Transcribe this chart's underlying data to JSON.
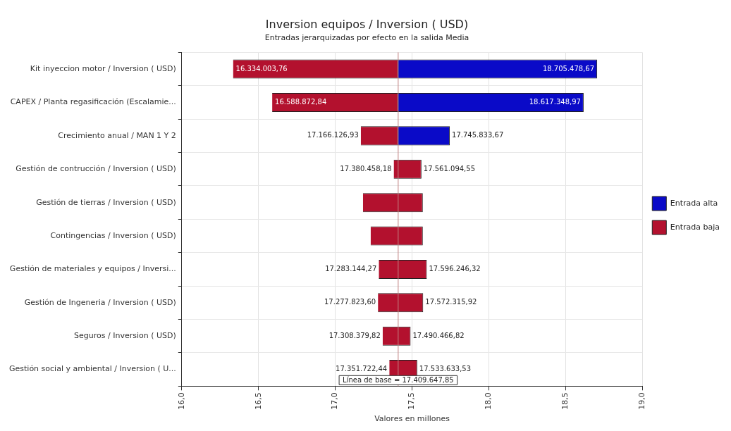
{
  "chart_data": {
    "type": "bar",
    "orientation": "horizontal",
    "title": "Inversion equipos / Inversion ( USD)",
    "subtitle": "Entradas jerarquizadas por efecto en la salida Media",
    "xlabel": "Valores en millones",
    "categories": [
      "Kit inyeccion motor / Inversion ( USD)",
      "CAPEX / Planta regasificación (Escalamie...",
      "Crecimiento anual / MAN 1 Y 2",
      "Gestión de contrucción / Inversion ( USD)",
      "Gestión de tierras / Inversion ( USD)",
      "Contingencias / Inversion ( USD)",
      "Gestión de materiales y equipos / Inversi...",
      "Gestión de Ingeneria / Inversion ( USD)",
      "Seguros / Inversion ( USD)",
      "Gestión social y ambiental / Inversion ( U..."
    ],
    "series": [
      {
        "name": "Entrada alta",
        "color": "#0a0ac8",
        "base": [
          17.40964785,
          17.40964785,
          17.40964785,
          null,
          null,
          null,
          null,
          null,
          null,
          null
        ],
        "values": [
          1.29583082,
          1.20770112,
          0.33618582,
          null,
          null,
          null,
          null,
          null,
          null,
          null
        ]
      },
      {
        "name": "Entrada baja",
        "color": "#b3112e",
        "base": [
          16.33400376,
          16.58887284,
          17.16612693,
          17.38045818,
          17.18,
          17.23,
          17.28314427,
          17.2778236,
          17.30837982,
          17.35172244
        ],
        "values": [
          1.07564409,
          0.82077501,
          0.24352092,
          0.18063637,
          0.39,
          0.34,
          0.31310205,
          0.29449232,
          0.182087,
          0.18191109
        ]
      }
    ],
    "xlim": [
      16,
      19
    ],
    "xticks": [
      {
        "value": 16,
        "label": "16,0"
      },
      {
        "value": 16.5,
        "label": "16,5"
      },
      {
        "value": 17,
        "label": "17,0"
      },
      {
        "value": 17.5,
        "label": "17,5"
      },
      {
        "value": 18,
        "label": "18,0"
      },
      {
        "value": 18.5,
        "label": "18,5"
      },
      {
        "value": 19,
        "label": "19,0"
      }
    ],
    "ref_lines": [
      {
        "axis": "x",
        "value": 17.40964785,
        "label": "Línea de base = 17.409.647,85",
        "color": "#c08080"
      }
    ],
    "annotations": [
      {
        "text": "16.334.003,76",
        "x": 16.33400376,
        "y": "Kit inyeccion motor / Inversion ( USD)"
      },
      {
        "text": "18.705.478,67",
        "x": 18.70547867,
        "y": "Kit inyeccion motor / Inversion ( USD)"
      },
      {
        "text": "16.588.872,84",
        "x": 16.58887284,
        "y": "CAPEX / Planta regasificación (Escalamie..."
      },
      {
        "text": "18.617.348,97",
        "x": 18.61734897,
        "y": "CAPEX / Planta regasificación (Escalamie..."
      },
      {
        "text": "17.166.126,93",
        "x": 17.16612693,
        "y": "Crecimiento anual / MAN 1 Y 2"
      },
      {
        "text": "17.745.833,67",
        "x": 17.74583367,
        "y": "Crecimiento anual / MAN 1 Y 2"
      },
      {
        "text": "17.380.458,18",
        "x": 17.38045818,
        "y": "Gestión de contrucción / Inversion ( USD)"
      },
      {
        "text": "17.561.094,55",
        "x": 17.56109455,
        "y": "Gestión de contrucción / Inversion ( USD)"
      },
      {
        "text": "17.283.144,27",
        "x": 17.28314427,
        "y": "Gestión de materiales y equipos / Inversi..."
      },
      {
        "text": "17.596.246,32",
        "x": 17.59624632,
        "y": "Gestión de materiales y equipos / Inversi..."
      },
      {
        "text": "17.277.823,60",
        "x": 17.2778236,
        "y": "Gestión de Ingeneria / Inversion ( USD)"
      },
      {
        "text": "17.572.315,92",
        "x": 17.57231592,
        "y": "Gestión de Ingeneria / Inversion ( USD)"
      },
      {
        "text": "17.308.379,82",
        "x": 17.30837982,
        "y": "Seguros / Inversion ( USD)"
      },
      {
        "text": "17.490.466,82",
        "x": 17.49046682,
        "y": "Seguros / Inversion ( USD)"
      },
      {
        "text": "17.351.722,44",
        "x": 17.35172244,
        "y": "Gestión social y ambiental / Inversion ( U..."
      },
      {
        "text": "17.533.633,53",
        "x": 17.53363353,
        "y": "Gestión social y ambiental / Inversion ( U..."
      }
    ],
    "grid": true,
    "legend": "right"
  }
}
